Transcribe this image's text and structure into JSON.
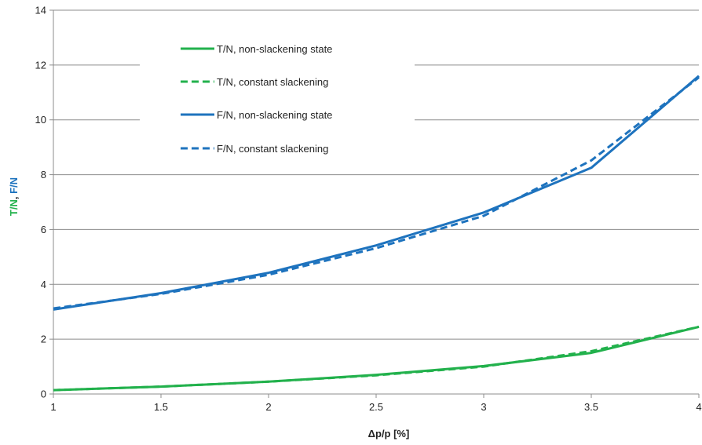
{
  "chart_data": {
    "type": "line",
    "xlabel": "Δp/p [%]",
    "ylabel": {
      "parts": [
        {
          "text": "T/N",
          "color": "#22b14c"
        },
        {
          "text": ", ",
          "color": "#222222"
        },
        {
          "text": "F/N",
          "color": "#1e73be"
        }
      ]
    },
    "xlim": [
      1,
      4
    ],
    "ylim": [
      0,
      14
    ],
    "xticks": [
      1,
      1.5,
      2,
      2.5,
      3,
      3.5,
      4
    ],
    "xtick_labels": [
      "1",
      "1.5",
      "2",
      "2.5",
      "3",
      "3.5",
      "4"
    ],
    "yticks": [
      0,
      2,
      4,
      6,
      8,
      10,
      12,
      14
    ],
    "ytick_labels": [
      "0",
      "2",
      "4",
      "6",
      "8",
      "10",
      "12",
      "14"
    ],
    "grid": {
      "horizontal": true,
      "vertical": false
    },
    "legend_position": "top-center",
    "series": [
      {
        "name": "T/N, non-slackening state",
        "color": "#22b14c",
        "dash": "solid",
        "x": [
          1,
          1.5,
          2,
          2.5,
          3,
          3.5,
          4
        ],
        "y": [
          0.14,
          0.27,
          0.45,
          0.7,
          1.02,
          1.5,
          2.45
        ]
      },
      {
        "name": "T/N, constant slackening",
        "color": "#22b14c",
        "dash": "dashed",
        "x": [
          1,
          1.5,
          2,
          2.5,
          3,
          3.5,
          4
        ],
        "y": [
          0.14,
          0.27,
          0.45,
          0.68,
          1.0,
          1.56,
          2.45
        ]
      },
      {
        "name": "F/N, non-slackening state",
        "color": "#1e73be",
        "dash": "solid",
        "x": [
          1,
          1.5,
          2,
          2.5,
          3,
          3.5,
          4
        ],
        "y": [
          3.08,
          3.68,
          4.42,
          5.42,
          6.62,
          8.25,
          11.6
        ]
      },
      {
        "name": "F/N, constant slackening",
        "color": "#1e73be",
        "dash": "dashed",
        "x": [
          1,
          1.5,
          2,
          2.5,
          3,
          3.5,
          4
        ],
        "y": [
          3.12,
          3.65,
          4.35,
          5.32,
          6.5,
          8.52,
          11.55
        ]
      }
    ]
  }
}
